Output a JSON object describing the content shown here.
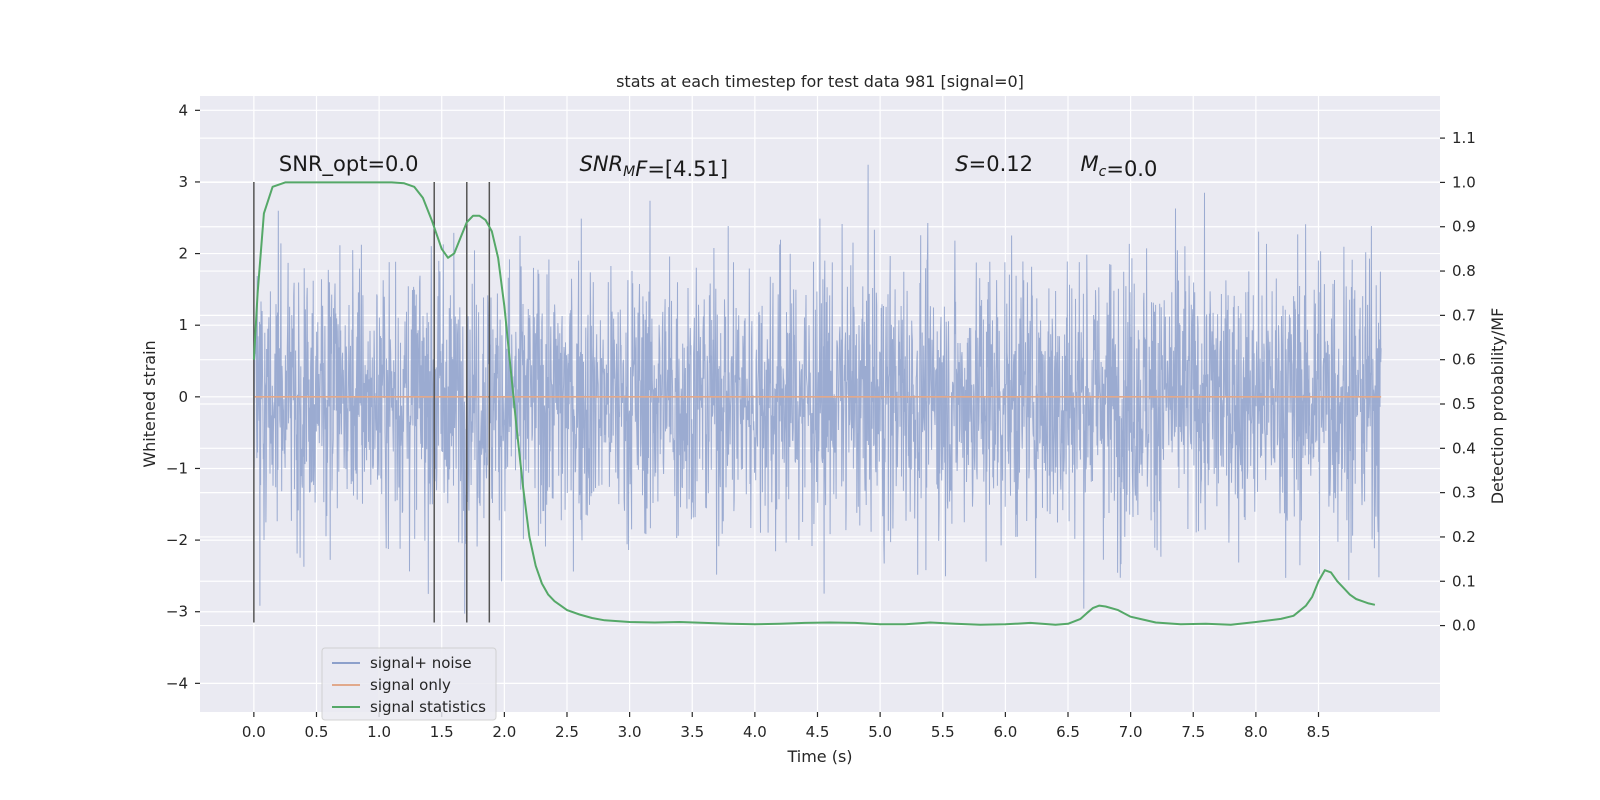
{
  "chart_data": {
    "type": "line",
    "title": "stats at each timestep for test data 981 [signal=0]",
    "xlabel": "Time (s)",
    "ylabel": "Whitened strain",
    "y2label": "Detection probability/MF",
    "xlim": [
      -0.43,
      9.47
    ],
    "ylim": [
      -4.4,
      4.2
    ],
    "y2lim": [
      -0.195,
      1.195
    ],
    "x_ticks": [
      0.0,
      0.5,
      1.0,
      1.5,
      2.0,
      2.5,
      3.0,
      3.5,
      4.0,
      4.5,
      5.0,
      5.5,
      6.0,
      6.5,
      7.0,
      7.5,
      8.0,
      8.5
    ],
    "x_tick_labels": [
      "0.0",
      "0.5",
      "1.0",
      "1.5",
      "2.0",
      "2.5",
      "3.0",
      "3.5",
      "4.0",
      "4.5",
      "5.0",
      "5.5",
      "6.0",
      "6.5",
      "7.0",
      "7.5",
      "8.0",
      "8.5"
    ],
    "y_ticks": [
      -4,
      -3,
      -2,
      -1,
      0,
      1,
      2,
      3,
      4
    ],
    "y_tick_labels": [
      "−4",
      "−3",
      "−2",
      "−1",
      "0",
      "1",
      "2",
      "3",
      "4"
    ],
    "y2_ticks": [
      0.0,
      0.1,
      0.2,
      0.3,
      0.4,
      0.5,
      0.6,
      0.7,
      0.8,
      0.9,
      1.0,
      1.1
    ],
    "y2_tick_labels": [
      "0.0",
      "0.1",
      "0.2",
      "0.3",
      "0.4",
      "0.5",
      "0.6",
      "0.7",
      "0.8",
      "0.9",
      "1.0",
      "1.1"
    ],
    "grid": true,
    "legend_position": "bottom-left",
    "annotations": [
      {
        "x": 0.2,
        "y": 3.15,
        "parts": [
          {
            "t": "SNR_opt=0.0"
          }
        ]
      },
      {
        "x": 2.6,
        "y": 3.15,
        "parts": [
          {
            "t": "SNR",
            "i": true
          },
          {
            "t": "M",
            "i": true,
            "sub": true
          },
          {
            "t": "F",
            "i": true
          },
          {
            "t": "=[4.51]"
          }
        ]
      },
      {
        "x": 5.6,
        "y": 3.15,
        "parts": [
          {
            "t": "S",
            "i": true
          },
          {
            "t": "=0.12"
          }
        ]
      },
      {
        "x": 6.6,
        "y": 3.15,
        "parts": [
          {
            "t": "M",
            "i": true
          },
          {
            "t": "c",
            "i": true,
            "sub": true
          },
          {
            "t": "=0.0"
          }
        ]
      }
    ],
    "vertical_lines": {
      "x": [
        0.0,
        1.44,
        1.7,
        1.88
      ],
      "y_range": [
        -3.15,
        3.0
      ],
      "color": "#555555"
    },
    "series": [
      {
        "name": "signal+ noise",
        "color": "#8da0cb",
        "kind": "noise",
        "x_range": [
          0.0,
          9.0
        ],
        "band_std": 0.95,
        "peak_max": 3.85,
        "peak_min": -4.0
      },
      {
        "name": "signal only",
        "color": "#e1a98c",
        "kind": "flat",
        "x": [
          0.0,
          9.0
        ],
        "y": [
          0.0,
          0.0
        ]
      },
      {
        "name": "signal statistics",
        "color": "#55a868",
        "kind": "line",
        "axis": "right",
        "x": [
          0.0,
          0.03,
          0.08,
          0.15,
          0.25,
          0.4,
          0.6,
          0.8,
          1.0,
          1.1,
          1.2,
          1.28,
          1.35,
          1.42,
          1.5,
          1.55,
          1.6,
          1.65,
          1.7,
          1.75,
          1.8,
          1.85,
          1.9,
          1.95,
          2.0,
          2.05,
          2.1,
          2.15,
          2.2,
          2.25,
          2.3,
          2.35,
          2.4,
          2.45,
          2.5,
          2.6,
          2.7,
          2.8,
          3.0,
          3.2,
          3.4,
          3.6,
          3.8,
          4.0,
          4.2,
          4.4,
          4.6,
          4.8,
          5.0,
          5.2,
          5.4,
          5.6,
          5.8,
          6.0,
          6.2,
          6.4,
          6.5,
          6.6,
          6.65,
          6.7,
          6.75,
          6.8,
          6.9,
          7.0,
          7.2,
          7.4,
          7.6,
          7.8,
          8.0,
          8.2,
          8.3,
          8.4,
          8.45,
          8.5,
          8.55,
          8.6,
          8.65,
          8.7,
          8.75,
          8.8,
          8.85,
          8.9,
          8.95
        ],
        "y": [
          0.6,
          0.75,
          0.93,
          0.99,
          1.0,
          1.0,
          1.0,
          1.0,
          1.0,
          1.0,
          0.998,
          0.99,
          0.965,
          0.915,
          0.85,
          0.83,
          0.84,
          0.875,
          0.91,
          0.925,
          0.925,
          0.915,
          0.89,
          0.83,
          0.72,
          0.58,
          0.44,
          0.31,
          0.2,
          0.135,
          0.095,
          0.07,
          0.055,
          0.045,
          0.035,
          0.025,
          0.017,
          0.012,
          0.008,
          0.007,
          0.008,
          0.006,
          0.004,
          0.003,
          0.004,
          0.006,
          0.007,
          0.006,
          0.003,
          0.003,
          0.007,
          0.004,
          0.002,
          0.003,
          0.006,
          0.002,
          0.004,
          0.015,
          0.028,
          0.04,
          0.045,
          0.043,
          0.035,
          0.02,
          0.007,
          0.003,
          0.004,
          0.002,
          0.008,
          0.015,
          0.022,
          0.045,
          0.065,
          0.1,
          0.125,
          0.12,
          0.1,
          0.085,
          0.07,
          0.06,
          0.055,
          0.05,
          0.047
        ]
      }
    ]
  }
}
